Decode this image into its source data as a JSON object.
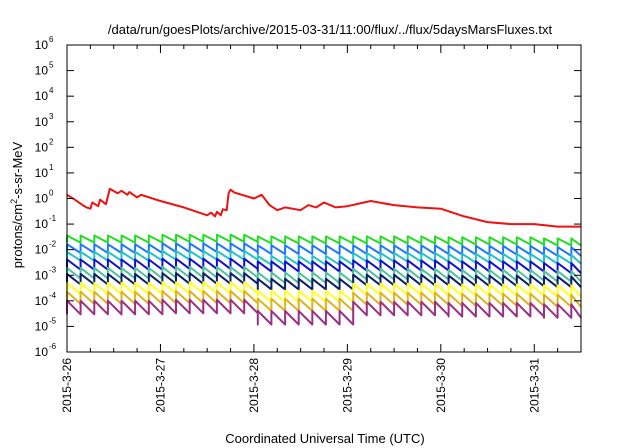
{
  "chart_data": {
    "type": "line",
    "title": "/data/run/goesPlots/archive/2015-03-31/11:00/flux/../flux/5daysMarsFluxes.txt",
    "xlabel": "Coordinated Universal Time (UTC)",
    "ylabel": "protons/cm2-s-sr-MeV",
    "ylabel_parts": {
      "pre": "protons/cm",
      "sup": "2",
      "post": "-s-sr-MeV"
    },
    "y_scale": "log",
    "ylim": [
      1e-06,
      1000000.0
    ],
    "xlim": [
      "2015-03-26T00:00",
      "2015-03-31T12:00"
    ],
    "x_ticks": [
      "2015-3-26",
      "2015-3-27",
      "2015-3-28",
      "2015-3-29",
      "2015-3-30",
      "2015-3-31"
    ],
    "y_ticks": [
      {
        "base": "10",
        "exp": "-6"
      },
      {
        "base": "10",
        "exp": "-5"
      },
      {
        "base": "10",
        "exp": "-4"
      },
      {
        "base": "10",
        "exp": "-3"
      },
      {
        "base": "10",
        "exp": "-2"
      },
      {
        "base": "10",
        "exp": "-1"
      },
      {
        "base": "10",
        "exp": "0"
      },
      {
        "base": "10",
        "exp": "1"
      },
      {
        "base": "10",
        "exp": "2"
      },
      {
        "base": "10",
        "exp": "3"
      },
      {
        "base": "10",
        "exp": "4"
      },
      {
        "base": "10",
        "exp": "5"
      },
      {
        "base": "10",
        "exp": "6"
      }
    ],
    "grid": false,
    "legend": "none",
    "sawtooth_period_hours": 3.5,
    "series": [
      {
        "color": "#ee1111",
        "x": [
          "2015-03-26T00:00",
          "2015-03-26T02:00",
          "2015-03-26T04:00",
          "2015-03-26T05:00",
          "2015-03-26T06:00",
          "2015-03-26T06:30",
          "2015-03-26T08:00",
          "2015-03-26T08:30",
          "2015-03-26T10:00",
          "2015-03-26T11:00",
          "2015-03-26T13:00",
          "2015-03-26T14:00",
          "2015-03-26T15:30",
          "2015-03-26T16:00",
          "2015-03-26T18:00",
          "2015-03-26T19:00",
          "2015-03-27T00:00",
          "2015-03-27T06:00",
          "2015-03-27T12:00",
          "2015-03-27T13:00",
          "2015-03-27T14:00",
          "2015-03-27T14:30",
          "2015-03-27T15:30",
          "2015-03-27T16:00",
          "2015-03-27T17:00",
          "2015-03-27T17:30",
          "2015-03-27T18:00",
          "2015-03-27T19:00",
          "2015-03-28T00:00",
          "2015-03-28T02:00",
          "2015-03-28T04:00",
          "2015-03-28T06:00",
          "2015-03-28T08:00",
          "2015-03-28T12:00",
          "2015-03-28T14:00",
          "2015-03-28T16:00",
          "2015-03-28T18:00",
          "2015-03-28T21:00",
          "2015-03-29T00:00",
          "2015-03-29T06:00",
          "2015-03-29T12:00",
          "2015-03-29T18:00",
          "2015-03-30T00:00",
          "2015-03-30T06:00",
          "2015-03-30T12:00",
          "2015-03-30T18:00",
          "2015-03-31T00:00",
          "2015-03-31T06:00",
          "2015-03-31T12:00"
        ],
        "values": [
          1.4,
          0.9,
          0.55,
          0.45,
          0.4,
          0.7,
          0.5,
          0.9,
          0.6,
          2.4,
          1.6,
          2.0,
          1.4,
          1.8,
          1.1,
          1.4,
          0.8,
          0.45,
          0.22,
          0.28,
          0.2,
          0.3,
          0.22,
          0.38,
          0.35,
          1.6,
          2.2,
          1.7,
          1.0,
          1.4,
          0.55,
          0.35,
          0.45,
          0.35,
          0.55,
          0.45,
          0.7,
          0.45,
          0.5,
          0.8,
          0.55,
          0.45,
          0.4,
          0.2,
          0.12,
          0.1,
          0.1,
          0.08,
          0.08
        ]
      },
      {
        "color": "#22dd22",
        "baseline": [
          0.026,
          0.028,
          0.024,
          0.024,
          0.022,
          0.02
        ],
        "depth": 1.9
      },
      {
        "color": "#1e78ff",
        "baseline": [
          0.011,
          0.012,
          0.01,
          0.01,
          0.0095,
          0.0085
        ],
        "depth": 2.2
      },
      {
        "color": "#23c3c3",
        "baseline": [
          0.0055,
          0.006,
          0.0038,
          0.005,
          0.0046,
          0.0042
        ],
        "depth": 2.2
      },
      {
        "color": "#1111cc",
        "baseline": [
          0.0026,
          0.0028,
          0.0022,
          0.0024,
          0.0022,
          0.0019
        ],
        "depth": 2.5
      },
      {
        "color": "#4dc29a",
        "baseline": [
          0.0012,
          0.0013,
          0.0008,
          0.0011,
          0.001,
          0.0009
        ],
        "depth": 2.6
      },
      {
        "color": "#0b1f6b",
        "baseline": [
          0.0007,
          0.00075,
          0.00045,
          0.00065,
          0.0006,
          0.00055
        ],
        "depth": 2.6
      },
      {
        "color": "#ffff22",
        "baseline": [
          0.0003,
          0.00032,
          0.00015,
          0.00028,
          0.00026,
          0.00024
        ],
        "depth": 2.8
      },
      {
        "color": "#ddb21e",
        "baseline": [
          0.00013,
          0.00014,
          7e-05,
          0.00012,
          0.00011,
          0.0001
        ],
        "depth": 3.0
      },
      {
        "color": "#9b2f84",
        "baseline": [
          5.5e-05,
          6e-05,
          2.2e-05,
          5e-05,
          4.5e-05,
          4e-05
        ],
        "depth": 3.4
      }
    ]
  }
}
